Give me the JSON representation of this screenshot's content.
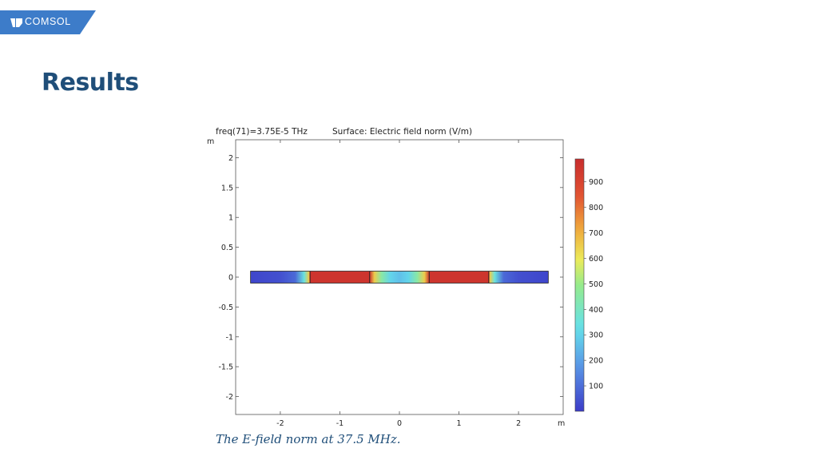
{
  "brand": {
    "name": "COMSOL",
    "tab_color": "#3d7cc9"
  },
  "page": {
    "title": "Results",
    "caption": "The E-field norm at 37.5 MHz."
  },
  "chart_data": {
    "type": "heatmap",
    "title_left": "freq(71)=3.75E-5 THz",
    "title_right": "Surface: Electric field norm (V/m)",
    "xlabel_unit": "m",
    "ylabel_unit": "m",
    "xlim": [
      -2.75,
      2.75
    ],
    "ylim": [
      -2.3,
      2.3
    ],
    "x_ticks": [
      -2,
      -1,
      0,
      1,
      2
    ],
    "x_tick_labels": [
      "-2",
      "-1",
      "0",
      "1",
      "2"
    ],
    "y_ticks": [
      2,
      1.5,
      1,
      0.5,
      0,
      -0.5,
      -1,
      -1.5,
      -2
    ],
    "y_tick_labels": [
      "2",
      "1.5",
      "1",
      "0.5",
      "0",
      "-0.5",
      "-1",
      "-1.5",
      "-2"
    ],
    "domain": {
      "x": [
        -2.5,
        2.5
      ],
      "y": [
        -0.1,
        0.1
      ]
    },
    "boundaries_x": [
      -1.5,
      -0.5,
      0.5,
      1.5
    ],
    "field_profile": {
      "x": [
        -2.5,
        -2.0,
        -1.75,
        -1.6,
        -1.52,
        -1.5,
        -0.5,
        -0.42,
        -0.3,
        -0.15,
        0.0,
        0.15,
        0.3,
        0.42,
        0.5,
        1.5,
        1.52,
        1.6,
        1.75,
        2.0,
        2.5
      ],
      "value": [
        20,
        40,
        90,
        350,
        650,
        960,
        960,
        650,
        450,
        300,
        260,
        300,
        450,
        650,
        960,
        960,
        650,
        350,
        90,
        40,
        20
      ]
    },
    "colorbar": {
      "range": [
        0,
        990
      ],
      "ticks": [
        100,
        200,
        300,
        400,
        500,
        600,
        700,
        800,
        900
      ],
      "tick_labels": [
        "100",
        "200",
        "300",
        "400",
        "500",
        "600",
        "700",
        "800",
        "900"
      ]
    },
    "grid": false
  }
}
